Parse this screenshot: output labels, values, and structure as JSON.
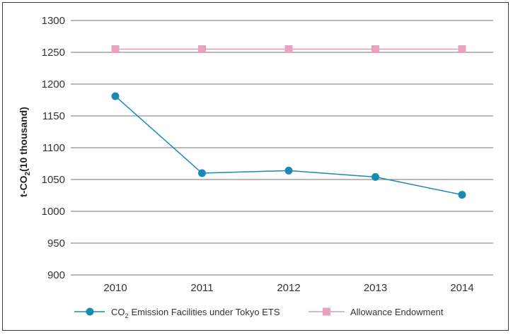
{
  "chart_data": {
    "type": "line",
    "categories": [
      "2010",
      "2011",
      "2012",
      "2013",
      "2014"
    ],
    "series": [
      {
        "name": "CO2 Emission Facilities under Tokyo ETS",
        "name_main": "CO",
        "name_sub": "2",
        "name_rest": "Emission Facilities under Tokyo ETS",
        "values": [
          1181,
          1060,
          1064,
          1054,
          1026
        ],
        "color": "#1a8ab4",
        "marker": "circle"
      },
      {
        "name": "Allowance Endowment",
        "values": [
          1255,
          1255,
          1255,
          1255,
          1255
        ],
        "color": "#e8a2c0",
        "line_color": "#c9a2b8",
        "marker": "square"
      }
    ],
    "ylabel": "t-CO2(10 thousand)",
    "ylabel_main": "t-CO",
    "ylabel_sub": "2",
    "ylabel_rest": "(10 thousand)",
    "ylim": [
      900,
      1300
    ],
    "yticks": [
      900,
      950,
      1000,
      1050,
      1100,
      1150,
      1200,
      1250,
      1300
    ],
    "grid": true,
    "legend_position": "bottom"
  }
}
